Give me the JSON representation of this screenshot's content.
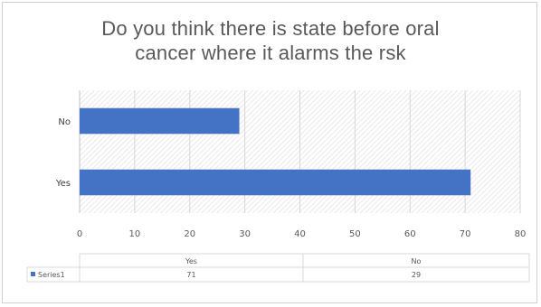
{
  "chart_data": {
    "type": "bar",
    "orientation": "horizontal",
    "title_lines": [
      "Do you think there is state before oral",
      "cancer where it alarms the rsk"
    ],
    "categories": [
      "No",
      "Yes"
    ],
    "series": [
      {
        "name": "Series1",
        "values": [
          29,
          71
        ],
        "color": "#4472c4"
      }
    ],
    "xlim": [
      0,
      80
    ],
    "xticks": [
      0,
      10,
      20,
      30,
      40,
      50,
      60,
      70,
      80
    ],
    "grid": true,
    "plot_background": "hatched",
    "data_table": {
      "headers": [
        "Yes",
        "No"
      ],
      "rows": [
        {
          "series": "Series1",
          "values": [
            "71",
            "29"
          ]
        }
      ]
    }
  }
}
